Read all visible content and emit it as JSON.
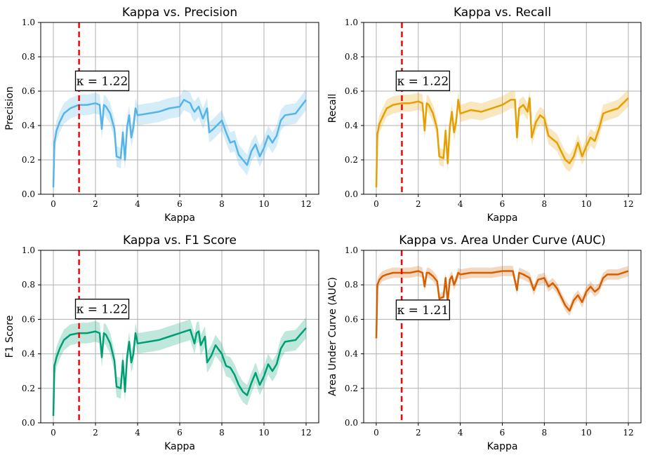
{
  "chart_data": [
    {
      "type": "line",
      "title": "Kappa vs. Precision",
      "xlabel": "Kappa",
      "ylabel": "Precision",
      "xlim": [
        -0.6,
        12.6
      ],
      "ylim": [
        0,
        1
      ],
      "xticks": [
        0,
        2,
        4,
        6,
        8,
        10,
        12
      ],
      "yticks": [
        0.0,
        0.2,
        0.4,
        0.6,
        0.8,
        1.0
      ],
      "grid": true,
      "color": "#56B4E9",
      "vline_x": 1.22,
      "annotation": "κ = 1.22",
      "annotation_pos": [
        1.05,
        0.66
      ],
      "band_half_width": 0.06,
      "x": [
        0,
        0.05,
        0.15,
        0.3,
        0.5,
        0.8,
        1.2,
        1.6,
        2.0,
        2.2,
        2.3,
        2.4,
        2.5,
        2.7,
        2.9,
        3.0,
        3.2,
        3.3,
        3.4,
        3.5,
        3.6,
        3.7,
        3.8,
        3.9,
        4.0,
        4.5,
        5.0,
        5.5,
        6.0,
        6.2,
        6.5,
        6.6,
        6.7,
        6.9,
        7.1,
        7.3,
        7.4,
        7.6,
        8.0,
        8.2,
        8.4,
        8.6,
        8.8,
        9.0,
        9.2,
        9.4,
        9.6,
        9.8,
        10.0,
        10.2,
        10.4,
        10.6,
        10.8,
        11.0,
        11.5,
        12.0
      ],
      "values": [
        0.04,
        0.3,
        0.37,
        0.42,
        0.47,
        0.5,
        0.52,
        0.52,
        0.53,
        0.52,
        0.38,
        0.52,
        0.51,
        0.47,
        0.38,
        0.22,
        0.21,
        0.36,
        0.2,
        0.39,
        0.46,
        0.33,
        0.39,
        0.5,
        0.46,
        0.47,
        0.48,
        0.5,
        0.51,
        0.55,
        0.53,
        0.5,
        0.48,
        0.51,
        0.44,
        0.5,
        0.36,
        0.38,
        0.43,
        0.36,
        0.3,
        0.31,
        0.23,
        0.2,
        0.17,
        0.25,
        0.29,
        0.22,
        0.27,
        0.34,
        0.3,
        0.34,
        0.43,
        0.46,
        0.47,
        0.55
      ]
    },
    {
      "type": "line",
      "title": "Kappa vs. Recall",
      "xlabel": "Kappa",
      "ylabel": "Recall",
      "xlim": [
        -0.6,
        12.6
      ],
      "ylim": [
        0,
        1
      ],
      "xticks": [
        0,
        2,
        4,
        6,
        8,
        10,
        12
      ],
      "yticks": [
        0.0,
        0.2,
        0.4,
        0.6,
        0.8,
        1.0
      ],
      "grid": true,
      "color": "#E69F00",
      "vline_x": 1.22,
      "annotation": "κ = 1.22",
      "annotation_pos": [
        0.95,
        0.66
      ],
      "band_half_width": 0.05,
      "x": [
        0,
        0.05,
        0.15,
        0.3,
        0.5,
        0.8,
        1.2,
        1.6,
        2.0,
        2.2,
        2.3,
        2.4,
        2.5,
        2.7,
        2.9,
        3.0,
        3.2,
        3.3,
        3.4,
        3.5,
        3.6,
        3.7,
        3.8,
        3.9,
        4.0,
        4.5,
        5.0,
        5.5,
        6.0,
        6.4,
        6.6,
        6.7,
        6.8,
        7.0,
        7.2,
        7.3,
        7.4,
        7.6,
        7.8,
        8.0,
        8.2,
        8.4,
        8.6,
        8.8,
        9.0,
        9.2,
        9.4,
        9.6,
        9.8,
        10.0,
        10.2,
        10.4,
        10.6,
        10.8,
        11.0,
        11.5,
        12.0
      ],
      "values": [
        0.04,
        0.35,
        0.41,
        0.45,
        0.5,
        0.52,
        0.53,
        0.53,
        0.54,
        0.53,
        0.37,
        0.53,
        0.52,
        0.47,
        0.38,
        0.22,
        0.21,
        0.37,
        0.18,
        0.39,
        0.48,
        0.36,
        0.42,
        0.55,
        0.47,
        0.49,
        0.48,
        0.5,
        0.52,
        0.55,
        0.55,
        0.33,
        0.5,
        0.52,
        0.48,
        0.56,
        0.33,
        0.42,
        0.46,
        0.44,
        0.34,
        0.32,
        0.3,
        0.25,
        0.2,
        0.18,
        0.22,
        0.3,
        0.22,
        0.28,
        0.33,
        0.31,
        0.38,
        0.47,
        0.48,
        0.5,
        0.56
      ]
    },
    {
      "type": "line",
      "title": "Kappa vs. F1 Score",
      "xlabel": "Kappa",
      "ylabel": "F1 Score",
      "xlim": [
        -0.6,
        12.6
      ],
      "ylim": [
        0,
        1
      ],
      "xticks": [
        0,
        2,
        4,
        6,
        8,
        10,
        12
      ],
      "yticks": [
        0.0,
        0.2,
        0.4,
        0.6,
        0.8,
        1.0
      ],
      "grid": true,
      "color": "#009E73",
      "vline_x": 1.22,
      "annotation": "κ = 1.22",
      "annotation_pos": [
        1.05,
        0.66
      ],
      "band_half_width": 0.06,
      "x": [
        0,
        0.05,
        0.15,
        0.3,
        0.5,
        0.8,
        1.2,
        1.6,
        2.0,
        2.2,
        2.3,
        2.4,
        2.5,
        2.7,
        2.9,
        3.0,
        3.2,
        3.3,
        3.4,
        3.5,
        3.6,
        3.7,
        3.8,
        3.9,
        4.0,
        4.5,
        5.0,
        5.5,
        6.0,
        6.5,
        6.7,
        6.8,
        6.9,
        7.0,
        7.2,
        7.3,
        7.5,
        7.7,
        8.0,
        8.2,
        8.4,
        8.6,
        8.8,
        9.0,
        9.2,
        9.4,
        9.6,
        9.8,
        10.0,
        10.2,
        10.4,
        10.6,
        10.8,
        11.0,
        11.5,
        12.0
      ],
      "values": [
        0.04,
        0.33,
        0.38,
        0.43,
        0.48,
        0.51,
        0.52,
        0.52,
        0.53,
        0.52,
        0.38,
        0.52,
        0.51,
        0.46,
        0.36,
        0.21,
        0.2,
        0.36,
        0.18,
        0.38,
        0.47,
        0.35,
        0.4,
        0.52,
        0.46,
        0.47,
        0.48,
        0.5,
        0.52,
        0.54,
        0.46,
        0.52,
        0.53,
        0.45,
        0.5,
        0.35,
        0.39,
        0.45,
        0.4,
        0.33,
        0.32,
        0.28,
        0.22,
        0.18,
        0.16,
        0.23,
        0.29,
        0.22,
        0.27,
        0.34,
        0.3,
        0.34,
        0.43,
        0.47,
        0.48,
        0.55
      ]
    },
    {
      "type": "line",
      "title": "Kappa vs. Area Under Curve (AUC)",
      "xlabel": "Kappa",
      "ylabel": "Area Under Curve (AUC)",
      "xlim": [
        -0.6,
        12.6
      ],
      "ylim": [
        0,
        1
      ],
      "xticks": [
        0,
        2,
        4,
        6,
        8,
        10,
        12
      ],
      "yticks": [
        0.0,
        0.2,
        0.4,
        0.6,
        0.8,
        1.0
      ],
      "grid": true,
      "color": "#D55E00",
      "vline_x": 1.21,
      "annotation": "κ = 1.21",
      "annotation_pos": [
        0.95,
        0.655
      ],
      "band_half_width": 0.03,
      "x": [
        0,
        0.05,
        0.15,
        0.3,
        0.5,
        0.8,
        1.2,
        1.6,
        2.0,
        2.2,
        2.3,
        2.4,
        2.5,
        2.7,
        2.9,
        3.0,
        3.2,
        3.3,
        3.4,
        3.5,
        3.6,
        3.7,
        3.8,
        3.9,
        4.0,
        4.5,
        5.0,
        5.5,
        6.0,
        6.5,
        6.7,
        6.8,
        7.0,
        7.3,
        7.5,
        7.7,
        8.0,
        8.2,
        8.4,
        8.6,
        8.8,
        9.0,
        9.2,
        9.4,
        9.6,
        9.8,
        10.0,
        10.2,
        10.4,
        10.6,
        10.8,
        11.0,
        11.5,
        12.0
      ],
      "values": [
        0.49,
        0.8,
        0.83,
        0.85,
        0.86,
        0.87,
        0.87,
        0.87,
        0.88,
        0.87,
        0.79,
        0.87,
        0.87,
        0.85,
        0.82,
        0.72,
        0.73,
        0.84,
        0.7,
        0.83,
        0.85,
        0.8,
        0.83,
        0.87,
        0.86,
        0.87,
        0.87,
        0.87,
        0.88,
        0.88,
        0.77,
        0.87,
        0.86,
        0.84,
        0.77,
        0.83,
        0.84,
        0.79,
        0.81,
        0.78,
        0.73,
        0.68,
        0.65,
        0.71,
        0.74,
        0.7,
        0.76,
        0.79,
        0.76,
        0.78,
        0.84,
        0.86,
        0.86,
        0.88
      ]
    }
  ]
}
